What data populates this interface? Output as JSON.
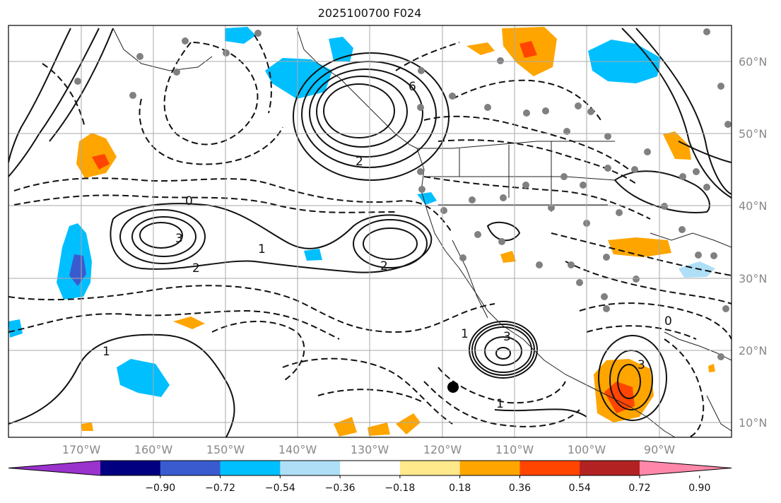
{
  "title": "2025100700 F024",
  "map": {
    "projection": "lat-lon",
    "lon_range": [
      -180,
      -80
    ],
    "lat_range": [
      8,
      65
    ],
    "lat_ticks": [
      {
        "value": 60,
        "label": "60°N"
      },
      {
        "value": 50,
        "label": "50°N"
      },
      {
        "value": 40,
        "label": "40°N"
      },
      {
        "value": 30,
        "label": "30°N"
      },
      {
        "value": 20,
        "label": "20°N"
      },
      {
        "value": 10,
        "label": "10°N"
      }
    ],
    "lon_ticks": [
      {
        "value": -170,
        "label": "170°W"
      },
      {
        "value": -160,
        "label": "160°W"
      },
      {
        "value": -150,
        "label": "150°W"
      },
      {
        "value": -140,
        "label": "140°W"
      },
      {
        "value": -130,
        "label": "130°W"
      },
      {
        "value": -120,
        "label": "120°W"
      },
      {
        "value": -110,
        "label": "110°W"
      },
      {
        "value": -100,
        "label": "100°W"
      },
      {
        "value": -90,
        "label": "90°W"
      }
    ],
    "grid": true
  },
  "colorbar": {
    "colors": [
      "#9a32cd",
      "#000080",
      "#3a5bd0",
      "#00bfff",
      "#aedff7",
      "#ffffff",
      "#ffe98a",
      "#ffa500",
      "#ff4500",
      "#b22222",
      "#ff88aa"
    ],
    "tick_labels": [
      "−0.90",
      "−0.72",
      "−0.54",
      "−0.36",
      "−0.18",
      "0.18",
      "0.36",
      "0.54",
      "0.72",
      "0.90"
    ],
    "extend": "both"
  },
  "contour_labels": [
    "3",
    "1",
    "2",
    "0",
    "2",
    "6",
    "2",
    "3",
    "1",
    "1",
    "1",
    "0",
    "3"
  ]
}
